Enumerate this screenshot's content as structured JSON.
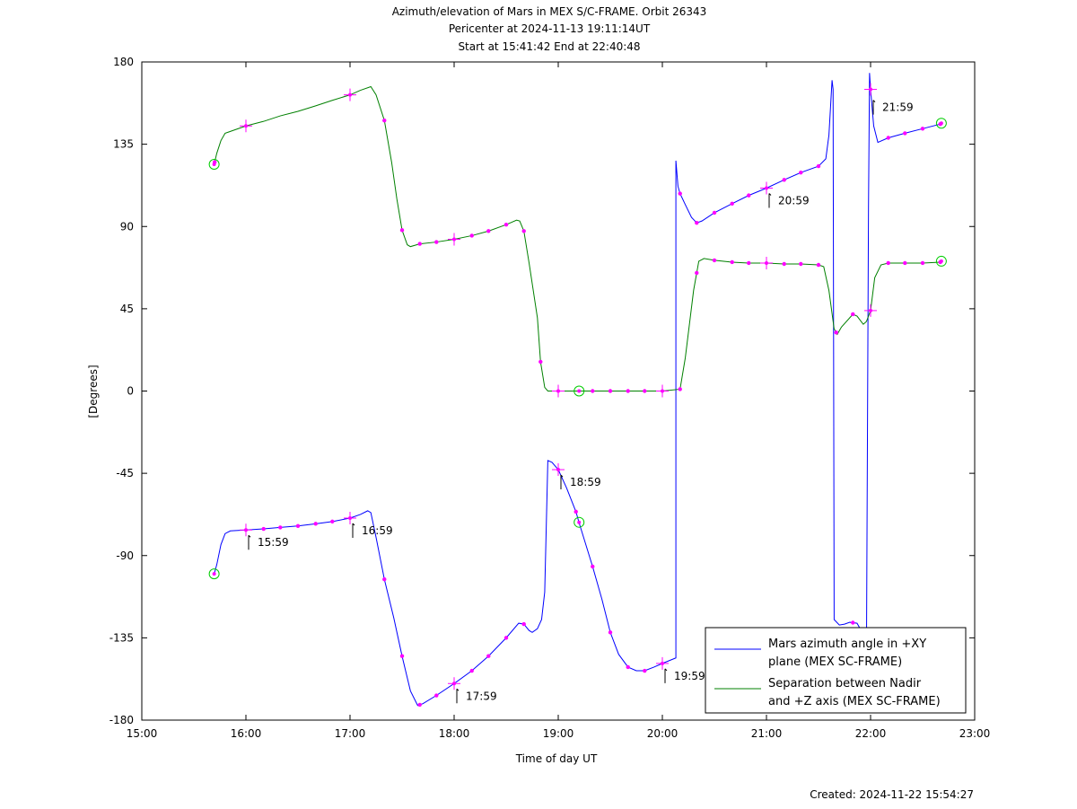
{
  "chart_data": {
    "type": "line",
    "title": [
      "Azimuth/elevation of Mars in MEX S/C-FRAME.  Orbit 26343",
      "Pericenter at 2024-11-13 19:11:14UT",
      "Start at 15:41:42 End at 22:40:48"
    ],
    "xlabel": "Time of day UT",
    "ylabel": "[Degrees]",
    "xlim": [
      15.0,
      23.0
    ],
    "ylim": [
      -180,
      180
    ],
    "x_ticks": [
      {
        "value": 15,
        "label": "15:00"
      },
      {
        "value": 16,
        "label": "16:00"
      },
      {
        "value": 17,
        "label": "17:00"
      },
      {
        "value": 18,
        "label": "18:00"
      },
      {
        "value": 19,
        "label": "19:00"
      },
      {
        "value": 20,
        "label": "20:00"
      },
      {
        "value": 21,
        "label": "21:00"
      },
      {
        "value": 22,
        "label": "22:00"
      },
      {
        "value": 23,
        "label": "23:00"
      }
    ],
    "y_ticks": [
      {
        "value": 180,
        "label": "180"
      },
      {
        "value": 135,
        "label": "135"
      },
      {
        "value": 90,
        "label": "90"
      },
      {
        "value": 45,
        "label": "45"
      },
      {
        "value": 0,
        "label": "0"
      },
      {
        "value": -45,
        "label": "-45"
      },
      {
        "value": -90,
        "label": "-90"
      },
      {
        "value": -135,
        "label": "-135"
      },
      {
        "value": -180,
        "label": "-180"
      }
    ],
    "legend_position": "bottom-right",
    "footer": "Created: 2024-11-22 15:54:27",
    "marker_color": "#ff00ff",
    "circle_color": "#00cc00",
    "series": [
      {
        "name": "Mars azimuth angle in +XY plane (MEX SC-FRAME)",
        "legend_lines": [
          "Mars azimuth angle in +XY",
          "plane (MEX SC-FRAME)"
        ],
        "color": "#0000ff",
        "segments": [
          [
            [
              15.695,
              -100
            ],
            [
              15.72,
              -95
            ],
            [
              15.76,
              -84
            ],
            [
              15.8,
              -78
            ],
            [
              15.85,
              -76.5
            ],
            [
              16.0,
              -76
            ],
            [
              16.17,
              -75.4
            ],
            [
              16.33,
              -74.6
            ],
            [
              16.5,
              -73.8
            ],
            [
              16.67,
              -72.6
            ],
            [
              16.83,
              -71.4
            ],
            [
              17.0,
              -69.5
            ],
            [
              17.1,
              -67.5
            ],
            [
              17.17,
              -65.5
            ],
            [
              17.2,
              -66.5
            ],
            [
              17.25,
              -80
            ],
            [
              17.33,
              -103
            ],
            [
              17.42,
              -124
            ],
            [
              17.5,
              -145
            ],
            [
              17.58,
              -164
            ],
            [
              17.65,
              -172
            ],
            [
              17.7,
              -171
            ],
            [
              17.83,
              -166.5
            ],
            [
              18.0,
              -160
            ],
            [
              18.17,
              -153
            ],
            [
              18.33,
              -145
            ],
            [
              18.5,
              -135
            ],
            [
              18.62,
              -127
            ],
            [
              18.67,
              -127.5
            ],
            [
              18.72,
              -131
            ],
            [
              18.75,
              -132
            ],
            [
              18.8,
              -130
            ],
            [
              18.84,
              -125
            ],
            [
              18.87,
              -110
            ],
            [
              18.9,
              -38
            ],
            [
              18.94,
              -39
            ],
            [
              19.0,
              -43
            ],
            [
              19.08,
              -53
            ],
            [
              19.17,
              -66
            ],
            [
              19.2,
              -72
            ],
            [
              19.33,
              -96
            ],
            [
              19.42,
              -114
            ],
            [
              19.5,
              -132
            ],
            [
              19.58,
              -144
            ],
            [
              19.67,
              -151
            ],
            [
              19.75,
              -153
            ],
            [
              19.83,
              -153
            ],
            [
              19.92,
              -151
            ],
            [
              20.0,
              -149
            ],
            [
              20.13,
              -146
            ],
            [
              20.13,
              126
            ],
            [
              20.15,
              112
            ],
            [
              20.17,
              108
            ],
            [
              20.22,
              102
            ],
            [
              20.28,
              95
            ],
            [
              20.33,
              92
            ],
            [
              20.38,
              93
            ],
            [
              20.5,
              97.5
            ],
            [
              20.67,
              102.5
            ],
            [
              20.83,
              107
            ],
            [
              21.0,
              111
            ],
            [
              21.17,
              115.5
            ],
            [
              21.33,
              119.5
            ],
            [
              21.5,
              123
            ],
            [
              21.57,
              127
            ],
            [
              21.6,
              140
            ],
            [
              21.63,
              170
            ],
            [
              21.64,
              165
            ],
            [
              21.65,
              -125
            ],
            [
              21.7,
              -128
            ],
            [
              21.75,
              -127.5
            ],
            [
              21.8,
              -126.5
            ],
            [
              21.87,
              -127
            ],
            [
              21.93,
              -133
            ],
            [
              21.96,
              -150
            ],
            [
              21.98,
              100
            ],
            [
              21.99,
              174
            ],
            [
              22.0,
              165
            ],
            [
              22.03,
              145
            ],
            [
              22.07,
              136
            ],
            [
              22.17,
              138.5
            ],
            [
              22.33,
              141
            ],
            [
              22.5,
              143.5
            ],
            [
              22.67,
              146
            ],
            [
              22.68,
              146.5
            ]
          ]
        ],
        "markers": [
          16.17,
          16.33,
          16.5,
          16.67,
          16.83,
          17.33,
          17.5,
          17.67,
          17.83,
          18.17,
          18.33,
          18.5,
          18.67,
          19.17,
          19.33,
          19.5,
          19.67,
          19.83,
          20.17,
          20.33,
          20.5,
          20.67,
          20.83,
          21.17,
          21.33,
          21.5,
          21.83,
          22.17,
          22.33,
          22.5,
          22.67
        ],
        "hour_crosses": [
          16.0,
          17.0,
          18.0,
          19.0,
          20.0,
          21.0,
          22.0
        ],
        "circles": [
          [
            15.695,
            -100
          ],
          [
            19.2,
            -71.8
          ],
          [
            22.68,
            146.5
          ]
        ],
        "annotations": [
          {
            "x": 16.0,
            "y": -76,
            "label": "15:59"
          },
          {
            "x": 17.0,
            "y": -69.5,
            "label": "16:59"
          },
          {
            "x": 18.0,
            "y": -160,
            "label": "17:59"
          },
          {
            "x": 19.0,
            "y": -43,
            "label": "18:59"
          },
          {
            "x": 20.0,
            "y": -149,
            "label": "19:59"
          },
          {
            "x": 21.0,
            "y": 111,
            "label": "20:59"
          },
          {
            "x": 22.0,
            "y": 162,
            "label": "21:59"
          }
        ]
      },
      {
        "name": "Separation between Nadir and +Z axis (MEX SC-FRAME)",
        "legend_lines": [
          "Separation between Nadir",
          "and +Z axis (MEX SC-FRAME)"
        ],
        "color": "#008000",
        "segments": [
          [
            [
              15.695,
              124
            ],
            [
              15.72,
              130
            ],
            [
              15.76,
              137
            ],
            [
              15.8,
              141
            ],
            [
              15.85,
              142
            ],
            [
              16.0,
              145
            ],
            [
              16.17,
              147.5
            ],
            [
              16.33,
              150.5
            ],
            [
              16.5,
              153
            ],
            [
              16.67,
              156
            ],
            [
              16.83,
              159
            ],
            [
              17.0,
              162
            ],
            [
              17.1,
              164.5
            ],
            [
              17.2,
              166.5
            ],
            [
              17.25,
              162
            ],
            [
              17.33,
              148
            ],
            [
              17.4,
              125
            ],
            [
              17.45,
              105
            ],
            [
              17.5,
              88
            ],
            [
              17.55,
              80
            ],
            [
              17.58,
              79
            ],
            [
              17.67,
              80.5
            ],
            [
              17.83,
              81.5
            ],
            [
              18.0,
              83
            ],
            [
              18.17,
              85
            ],
            [
              18.33,
              87.5
            ],
            [
              18.5,
              91
            ],
            [
              18.6,
              93.5
            ],
            [
              18.63,
              93
            ],
            [
              18.67,
              87.5
            ],
            [
              18.72,
              70
            ],
            [
              18.8,
              40
            ],
            [
              18.83,
              16
            ],
            [
              18.87,
              2
            ],
            [
              18.9,
              0
            ],
            [
              19.0,
              0
            ],
            [
              20.0,
              0
            ],
            [
              20.17,
              1
            ],
            [
              20.22,
              18
            ],
            [
              20.3,
              55
            ],
            [
              20.35,
              71
            ],
            [
              20.4,
              72.5
            ],
            [
              20.5,
              71.5
            ],
            [
              20.67,
              70.5
            ],
            [
              20.83,
              70
            ],
            [
              21.0,
              70
            ],
            [
              21.17,
              69.5
            ],
            [
              21.33,
              69.5
            ],
            [
              21.5,
              69
            ],
            [
              21.55,
              68
            ],
            [
              21.6,
              55
            ],
            [
              21.65,
              34
            ],
            [
              21.68,
              31
            ],
            [
              21.72,
              35
            ],
            [
              21.83,
              42
            ],
            [
              21.87,
              41
            ],
            [
              21.93,
              36.5
            ],
            [
              21.96,
              38
            ],
            [
              22.0,
              44
            ],
            [
              22.04,
              62
            ],
            [
              22.1,
              69
            ],
            [
              22.17,
              70
            ],
            [
              22.33,
              70
            ],
            [
              22.5,
              70
            ],
            [
              22.67,
              70.5
            ],
            [
              22.68,
              71
            ]
          ]
        ],
        "markers": [
          15.7,
          17.33,
          17.5,
          17.67,
          17.83,
          18.17,
          18.33,
          18.5,
          18.67,
          18.83,
          19.33,
          19.5,
          19.67,
          19.83,
          20.17,
          20.33,
          20.5,
          20.67,
          20.83,
          21.17,
          21.33,
          21.5,
          21.67,
          21.83,
          22.17,
          22.33,
          22.5,
          22.67
        ],
        "hour_crosses": [
          16.0,
          17.0,
          18.0,
          19.0,
          20.0,
          21.0,
          22.0
        ],
        "circles": [
          [
            15.695,
            124
          ],
          [
            19.2,
            0
          ],
          [
            22.68,
            71
          ]
        ],
        "annotations": []
      }
    ]
  }
}
